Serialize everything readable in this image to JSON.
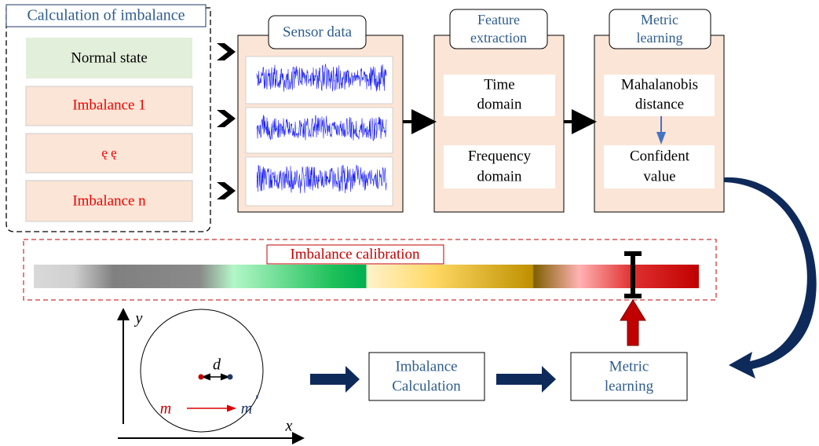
{
  "left_panel": {
    "title": "Calculation of imbalance",
    "items": [
      "Normal state",
      "Imbalance 1",
      "ę ę",
      "Imbalance n"
    ]
  },
  "pipeline": [
    {
      "header": [
        "Sensor data"
      ]
    },
    {
      "header": [
        "Feature",
        "extraction"
      ],
      "boxes": [
        [
          "Time",
          "domain"
        ],
        [
          "Frequency",
          "domain"
        ]
      ]
    },
    {
      "header": [
        "Metric",
        "learning"
      ],
      "boxes": [
        [
          "Mahalanobis",
          "distance"
        ],
        [
          "Confident",
          "value"
        ]
      ]
    }
  ],
  "calibration": {
    "title": "Imbalance calibration"
  },
  "rotor": {
    "y_axis": "y",
    "x_axis": "x",
    "distance": "d",
    "mass": "m",
    "mass_shifted": "m",
    "prime": "’"
  },
  "bottom_flow": [
    [
      "Imbalance",
      "Calculation"
    ],
    [
      "Metric",
      "learning"
    ]
  ]
}
